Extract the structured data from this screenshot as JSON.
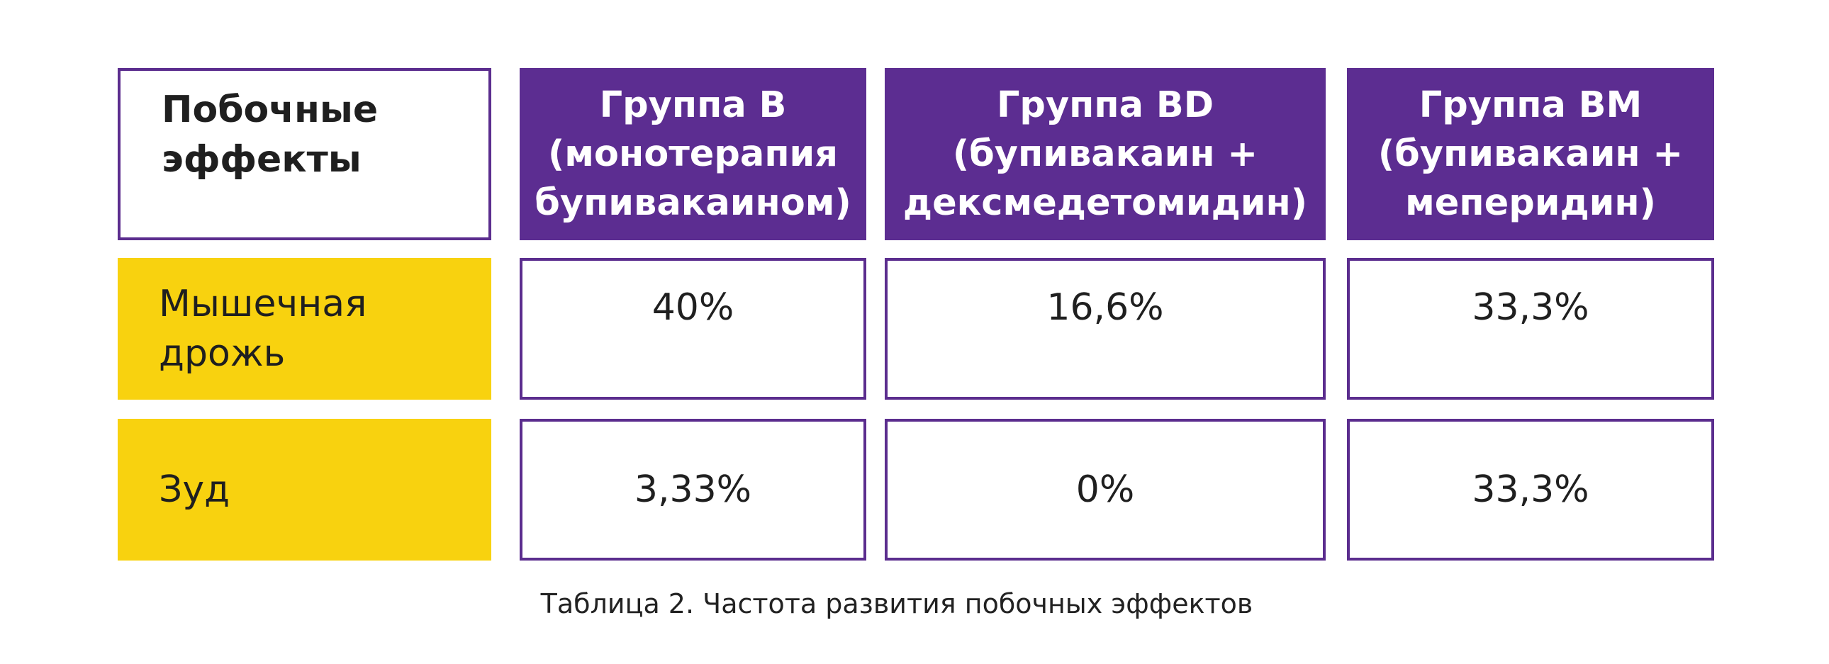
{
  "table": {
    "corner_header": "Побочные\nэффекты",
    "groups": [
      "Группа B\n(монотерапия\nбупивакаином)",
      "Группа BD\n(бупивакаин +\nдексмедетомидин)",
      "Группа BM\n(бупивакаин +\nмеперидин)"
    ],
    "rows": [
      {
        "label": "Мышечная\nдрожь",
        "values": [
          "40%",
          "16,6%",
          "33,3%"
        ]
      },
      {
        "label": "Зуд",
        "values": [
          "3,33%",
          "0%",
          "33,3%"
        ]
      }
    ],
    "colors": {
      "header_purple": "#5c2d91",
      "border_purple": "#5b2d8e",
      "label_yellow": "#f8d20f"
    }
  },
  "caption": "Таблица 2. Частота развития побочных эффектов"
}
